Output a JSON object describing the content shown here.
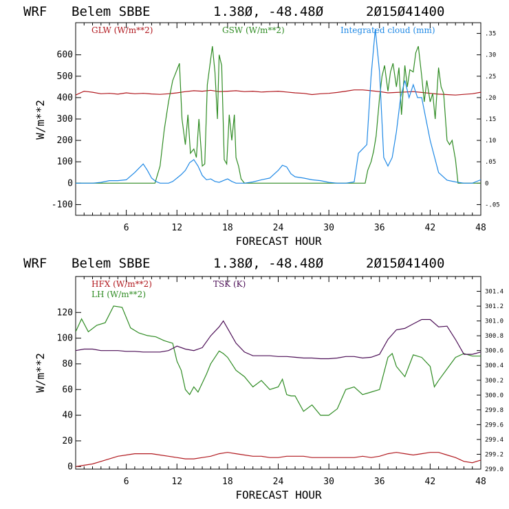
{
  "colors": {
    "red": "#b0161c",
    "green": "#2e8b22",
    "blue": "#1e88e5",
    "purple": "#4b0d55"
  },
  "chart_data": [
    {
      "type": "line",
      "header": {
        "model": "WRF",
        "station": "Belem SBBE",
        "coords": "1.38Ø, -48.48Ø",
        "init": "2Ø15Ø41400"
      },
      "xlabel": "FORECAST HOUR",
      "ylabel": "W/m**2",
      "xlim": [
        0,
        48
      ],
      "ylim": [
        -150,
        750
      ],
      "y2lim": [
        -0.075,
        0.375
      ],
      "xticks": [
        "6",
        "12",
        "18",
        "24",
        "30",
        "36",
        "42",
        "48"
      ],
      "yticks": [
        "-100",
        "0",
        "100",
        "200",
        "300",
        "400",
        "500",
        "600"
      ],
      "y2ticks": [
        "-.05",
        "0",
        ".05",
        ".10",
        ".15",
        ".20",
        ".25",
        ".30",
        ".35"
      ],
      "series": [
        {
          "name": "GLW (W/m**2)",
          "axis": "left",
          "color": "red",
          "x": [
            0,
            1,
            2,
            3,
            4,
            5,
            6,
            7,
            8,
            9,
            10,
            11,
            12,
            13,
            14,
            15,
            16,
            17,
            18,
            19,
            20,
            21,
            22,
            23,
            24,
            25,
            26,
            27,
            28,
            29,
            30,
            31,
            32,
            33,
            34,
            35,
            36,
            37,
            38,
            39,
            40,
            41,
            42,
            43,
            44,
            45,
            46,
            47,
            48
          ],
          "values": [
            412,
            430,
            425,
            418,
            420,
            416,
            422,
            418,
            420,
            417,
            415,
            418,
            422,
            428,
            432,
            430,
            434,
            428,
            430,
            432,
            428,
            430,
            426,
            428,
            430,
            426,
            422,
            420,
            414,
            418,
            420,
            424,
            430,
            436,
            436,
            432,
            428,
            422,
            424,
            426,
            428,
            424,
            420,
            416,
            414,
            412,
            415,
            418,
            425
          ]
        },
        {
          "name": "GSW (W/m**2)",
          "axis": "left",
          "color": "green",
          "x": [
            0,
            9.4,
            10,
            10.5,
            11,
            11.5,
            12,
            12.3,
            12.6,
            13,
            13.3,
            13.6,
            14,
            14.3,
            14.6,
            15,
            15.3,
            15.6,
            16,
            16.2,
            16.5,
            16.8,
            17,
            17.3,
            17.6,
            17.9,
            18.2,
            18.5,
            18.8,
            19,
            19.3,
            19.6,
            20,
            20.3,
            20.5,
            34.3,
            34.6,
            35,
            35.3,
            35.6,
            36,
            36.3,
            36.6,
            37,
            37.3,
            37.6,
            38,
            38.3,
            38.6,
            39,
            39.3,
            39.6,
            40,
            40.3,
            40.6,
            41,
            41.3,
            41.6,
            42,
            42.3,
            42.6,
            43,
            43.3,
            43.6,
            44,
            44.3,
            44.6,
            45,
            45.3,
            48
          ],
          "values": [
            0,
            0,
            80,
            250,
            380,
            480,
            530,
            560,
            300,
            180,
            320,
            140,
            160,
            120,
            300,
            80,
            90,
            460,
            580,
            640,
            520,
            300,
            600,
            550,
            110,
            90,
            320,
            200,
            320,
            120,
            80,
            20,
            0,
            0,
            0,
            0,
            60,
            100,
            150,
            220,
            400,
            500,
            550,
            430,
            520,
            560,
            450,
            540,
            320,
            550,
            450,
            530,
            520,
            610,
            640,
            500,
            380,
            480,
            380,
            420,
            300,
            540,
            450,
            420,
            200,
            180,
            200,
            110,
            0,
            0
          ]
        },
        {
          "name": "Integrated cloud (mm)",
          "axis": "right",
          "color": "blue",
          "x": [
            0,
            1,
            2,
            3,
            4,
            5,
            6,
            7,
            7.5,
            8,
            8.5,
            9,
            9.5,
            10,
            10.5,
            11,
            11.5,
            12,
            12.5,
            13,
            13.5,
            14,
            14.5,
            15,
            15.5,
            16,
            16.5,
            17,
            17.5,
            18,
            18.5,
            19,
            20,
            21,
            22,
            23,
            24,
            24.5,
            25,
            25.5,
            26,
            27,
            28,
            29,
            30,
            31,
            32,
            33,
            33.5,
            34,
            34.5,
            35,
            35.5,
            36,
            36.5,
            37,
            37.5,
            38,
            38.5,
            39,
            39.5,
            40,
            40.5,
            41,
            41.5,
            42,
            43,
            44,
            45,
            46,
            47,
            48
          ],
          "values": [
            0,
            0,
            0,
            0.002,
            0.006,
            0.006,
            0.008,
            0.025,
            0.035,
            0.045,
            0.03,
            0.012,
            0.004,
            0,
            0,
            0,
            0.004,
            0.012,
            0.02,
            0.03,
            0.048,
            0.055,
            0.04,
            0.018,
            0.008,
            0.01,
            0.004,
            0.002,
            0.006,
            0.01,
            0.004,
            0,
            0,
            0.003,
            0.008,
            0.012,
            0.03,
            0.042,
            0.038,
            0.022,
            0.015,
            0.012,
            0.008,
            0.006,
            0.002,
            0,
            0,
            0.003,
            0.07,
            0.08,
            0.09,
            0.25,
            0.36,
            0.26,
            0.06,
            0.04,
            0.06,
            0.12,
            0.2,
            0.24,
            0.2,
            0.23,
            0.2,
            0.2,
            0.15,
            0.1,
            0.025,
            0.007,
            0.003,
            0,
            0,
            0.008
          ]
        }
      ]
    },
    {
      "type": "line",
      "header": {
        "model": "WRF",
        "station": "Belem SBBE",
        "coords": "1.38Ø, -48.48Ø",
        "init": "2Ø15Ø41400"
      },
      "xlabel": "FORECAST HOUR",
      "ylabel": "W/m**2",
      "xlim": [
        0,
        48
      ],
      "ylim": [
        -2,
        148
      ],
      "y2lim": [
        299,
        301.6
      ],
      "xticks": [
        "6",
        "12",
        "18",
        "24",
        "30",
        "36",
        "42",
        "48"
      ],
      "yticks": [
        "0",
        "20",
        "40",
        "60",
        "80",
        "100",
        "120"
      ],
      "y2ticks": [
        "299.0",
        "299.2",
        "299.4",
        "299.6",
        "299.8",
        "300.0",
        "300.2",
        "300.4",
        "300.6",
        "300.8",
        "301.0",
        "301.2",
        "301.4"
      ],
      "series": [
        {
          "name": "HFX (W/m**2)",
          "axis": "left",
          "color": "red",
          "x": [
            0,
            1,
            2,
            3,
            4,
            5,
            6,
            7,
            8,
            9,
            10,
            11,
            12,
            13,
            14,
            15,
            16,
            17,
            18,
            19,
            20,
            21,
            22,
            23,
            24,
            25,
            26,
            27,
            28,
            29,
            30,
            31,
            32,
            33,
            34,
            35,
            36,
            37,
            38,
            39,
            40,
            41,
            42,
            43,
            44,
            45,
            46,
            47,
            48
          ],
          "values": [
            0,
            1,
            2,
            4,
            6,
            8,
            9,
            10,
            10,
            10,
            9,
            8,
            7,
            6,
            6,
            7,
            8,
            10,
            11,
            10,
            9,
            8,
            8,
            7,
            7,
            8,
            8,
            8,
            7,
            7,
            7,
            7,
            7,
            7,
            8,
            7,
            8,
            10,
            11,
            10,
            9,
            10,
            11,
            11,
            9,
            7,
            4,
            3,
            5
          ]
        },
        {
          "name": "LH (W/m**2)",
          "axis": "left",
          "color": "green",
          "x": [
            0,
            0.7,
            1.5,
            2.5,
            3.5,
            4.5,
            5.5,
            6.5,
            7.5,
            8.5,
            9.5,
            10.5,
            11.5,
            12,
            12.5,
            13,
            13.5,
            14,
            14.5,
            15,
            15.5,
            16,
            16.5,
            17,
            17.5,
            18,
            18.5,
            19,
            20,
            21,
            22,
            23,
            24,
            24.5,
            25,
            25.5,
            26,
            27,
            28,
            29,
            30,
            31,
            32,
            33,
            34,
            35,
            36,
            37,
            37.5,
            38,
            39,
            40,
            41,
            42,
            42.5,
            43,
            44,
            45,
            46,
            47,
            48
          ],
          "values": [
            105,
            115,
            105,
            110,
            112,
            125,
            124,
            108,
            104,
            102,
            101,
            98,
            96,
            82,
            75,
            60,
            56,
            62,
            58,
            65,
            72,
            80,
            85,
            90,
            88,
            85,
            80,
            75,
            70,
            62,
            67,
            60,
            62,
            68,
            56,
            55,
            55,
            43,
            48,
            40,
            40,
            45,
            60,
            62,
            56,
            58,
            60,
            85,
            88,
            78,
            70,
            87,
            85,
            78,
            62,
            67,
            76,
            85,
            88,
            86,
            86
          ]
        },
        {
          "name": "TSK (K)",
          "axis": "right",
          "color": "purple",
          "x": [
            0,
            1,
            2,
            3,
            4,
            5,
            6,
            7,
            8,
            9,
            10,
            11,
            12,
            13,
            14,
            15,
            16,
            17,
            17.5,
            18,
            19,
            20,
            21,
            22,
            23,
            24,
            25,
            26,
            27,
            28,
            29,
            30,
            31,
            32,
            33,
            34,
            35,
            36,
            37,
            38,
            39,
            40,
            41,
            42,
            43,
            44,
            45,
            46,
            47,
            48
          ],
          "values": [
            300.6,
            300.62,
            300.62,
            300.6,
            300.6,
            300.6,
            300.59,
            300.59,
            300.58,
            300.58,
            300.58,
            300.6,
            300.66,
            300.62,
            300.6,
            300.64,
            300.8,
            300.92,
            301.0,
            300.9,
            300.7,
            300.58,
            300.53,
            300.53,
            300.53,
            300.52,
            300.52,
            300.51,
            300.5,
            300.5,
            300.49,
            300.49,
            300.5,
            300.52,
            300.52,
            300.5,
            300.51,
            300.55,
            300.75,
            300.88,
            300.9,
            300.96,
            301.02,
            301.02,
            300.92,
            300.93,
            300.75,
            300.55,
            300.55,
            300.58
          ]
        }
      ]
    }
  ]
}
